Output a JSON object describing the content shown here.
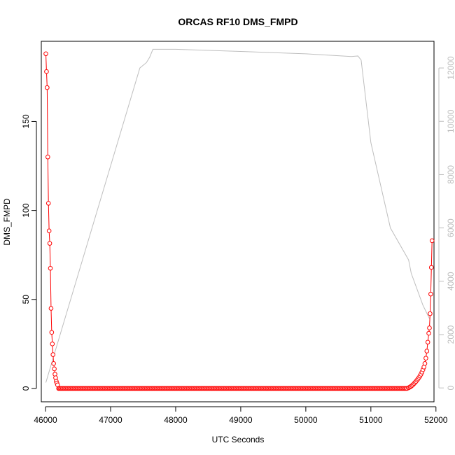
{
  "chart_data": {
    "type": "line",
    "title": "ORCAS RF10 DMS_FMPD",
    "xlabel": "UTC Seconds",
    "ylabel": "DMS_FMPD",
    "xlim": [
      45935,
      51970
    ],
    "ylim": [
      -7.5,
      195
    ],
    "y2lim": [
      -520,
      13000
    ],
    "xticks": [
      46000,
      47000,
      48000,
      49000,
      50000,
      51000,
      52000
    ],
    "yticks": [
      0,
      50,
      100,
      150
    ],
    "y2ticks": [
      0,
      2000,
      4000,
      6000,
      8000,
      10000,
      12000
    ],
    "colors": {
      "primary": "#ff0000",
      "secondary": "#bebebe",
      "axis": "#000000"
    },
    "grid": false,
    "legend": "none",
    "series": [
      {
        "axis": "left",
        "marker": "open-circle",
        "x": [
          46005,
          46015,
          46025,
          46035,
          46045,
          46055,
          46065,
          46075,
          46085,
          46095,
          46105,
          46115,
          46125,
          46135,
          46145,
          46155,
          46165,
          46175,
          46185
        ],
        "y": [
          188,
          178,
          169,
          130,
          104,
          88.5,
          81.5,
          67.5,
          45,
          31.5,
          25,
          19,
          14,
          11,
          8,
          6,
          4,
          3,
          2
        ]
      },
      {
        "axis": "left",
        "marker": "open-circle",
        "baseline_range": [
          46200,
          51560
        ],
        "baseline_step": 15,
        "baseline_value": 0
      },
      {
        "axis": "left",
        "marker": "open-circle",
        "x": [
          51575,
          51590,
          51605,
          51620,
          51635,
          51650,
          51665,
          51680,
          51695,
          51710,
          51725,
          51740,
          51755,
          51770,
          51785,
          51800,
          51815,
          51830,
          51845,
          51860,
          51875,
          51890,
          51900,
          51910,
          51920,
          51930
        ],
        "y": [
          0.3,
          0.6,
          0.9,
          1.3,
          1.7,
          2.2,
          2.8,
          3.4,
          4.0,
          4.7,
          5.4,
          6.2,
          7.0,
          8.0,
          9.2,
          10.5,
          12.0,
          14.0,
          17.0,
          21.0,
          26.0,
          31.0,
          34.0,
          42.0,
          53.0,
          68.0
        ]
      },
      {
        "axis": "left",
        "marker": "open-circle",
        "x": [
          51940
        ],
        "y": [
          83
        ]
      },
      {
        "axis": "right",
        "marker": "none",
        "x": [
          46005,
          46200,
          47450,
          47500,
          47550,
          47600,
          47650,
          48000,
          49000,
          50000,
          50500,
          50700,
          50800,
          50850,
          51000,
          51300,
          51580,
          51620,
          51800,
          51900
        ],
        "y": [
          200,
          1800,
          12000,
          12100,
          12200,
          12400,
          12700,
          12700,
          12620,
          12530,
          12460,
          12430,
          12450,
          12300,
          9200,
          6000,
          4800,
          4300,
          3100,
          2600
        ]
      }
    ]
  }
}
